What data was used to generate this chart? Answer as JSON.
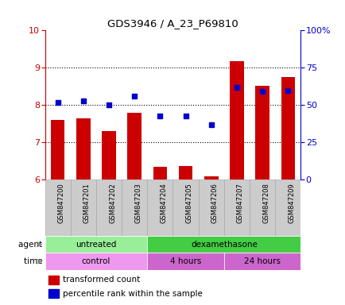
{
  "title": "GDS3946 / A_23_P69810",
  "samples": [
    "GSM847200",
    "GSM847201",
    "GSM847202",
    "GSM847203",
    "GSM847204",
    "GSM847205",
    "GSM847206",
    "GSM847207",
    "GSM847208",
    "GSM847209"
  ],
  "red_values": [
    7.6,
    7.65,
    7.3,
    7.8,
    6.35,
    6.38,
    6.1,
    9.18,
    8.52,
    8.76
  ],
  "blue_percentile": [
    52,
    53,
    50,
    56,
    43,
    43,
    37,
    62,
    59,
    60
  ],
  "ylim_left": [
    6,
    10
  ],
  "ylim_right": [
    0,
    100
  ],
  "yticks_left": [
    6,
    7,
    8,
    9,
    10
  ],
  "yticks_right": [
    0,
    25,
    50,
    75,
    100
  ],
  "ytick_labels_right": [
    "0",
    "25",
    "50",
    "75",
    "100%"
  ],
  "bar_color": "#cc0000",
  "dot_color": "#0000cc",
  "agent_groups": [
    {
      "label": "untreated",
      "start": 0,
      "end": 4,
      "color": "#99ee99"
    },
    {
      "label": "dexamethasone",
      "start": 4,
      "end": 10,
      "color": "#44cc44"
    }
  ],
  "time_groups": [
    {
      "label": "control",
      "start": 0,
      "end": 4,
      "color": "#ee99ee"
    },
    {
      "label": "4 hours",
      "start": 4,
      "end": 7,
      "color": "#cc66cc"
    },
    {
      "label": "24 hours",
      "start": 7,
      "end": 10,
      "color": "#cc66cc"
    }
  ],
  "legend_red": "transformed count",
  "legend_blue": "percentile rank within the sample",
  "bar_base": 6.0,
  "dot_size": 25,
  "sample_box_color": "#cccccc",
  "sample_box_edge": "#aaaaaa"
}
